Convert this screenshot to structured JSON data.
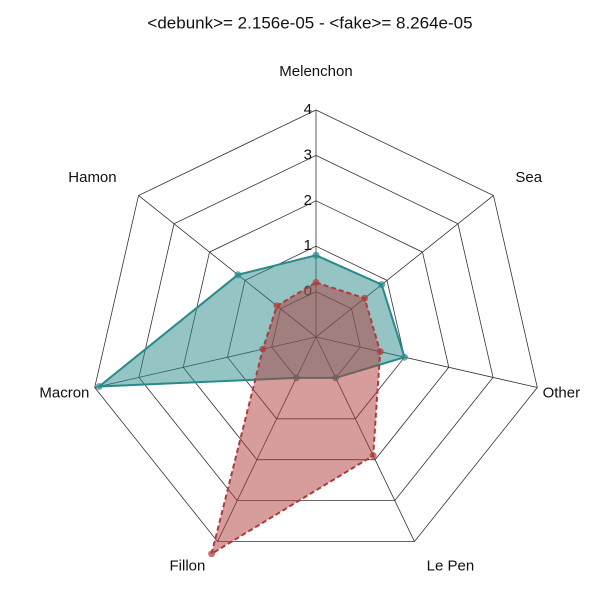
{
  "chart_data": {
    "type": "radar",
    "title": "<debunk>= 2.156e-05  - <fake>= 8.264e-05",
    "categories": [
      "Melenchon",
      "Sea",
      "Other",
      "Le Pen",
      "Fillon",
      "Macron",
      "Hamon"
    ],
    "series": [
      {
        "color": "#2a8a8a",
        "values": [
          0.8,
          0.85,
          1.0,
          0,
          0,
          3.9,
          1.2
        ]
      },
      {
        "color": "#b03a3a",
        "values": [
          0.2,
          0.37,
          0.45,
          1.9,
          4.3,
          0.2,
          0.1
        ]
      }
    ],
    "ylim": [
      -1,
      4
    ],
    "yticks": [
      0,
      1,
      2,
      3,
      4
    ]
  }
}
